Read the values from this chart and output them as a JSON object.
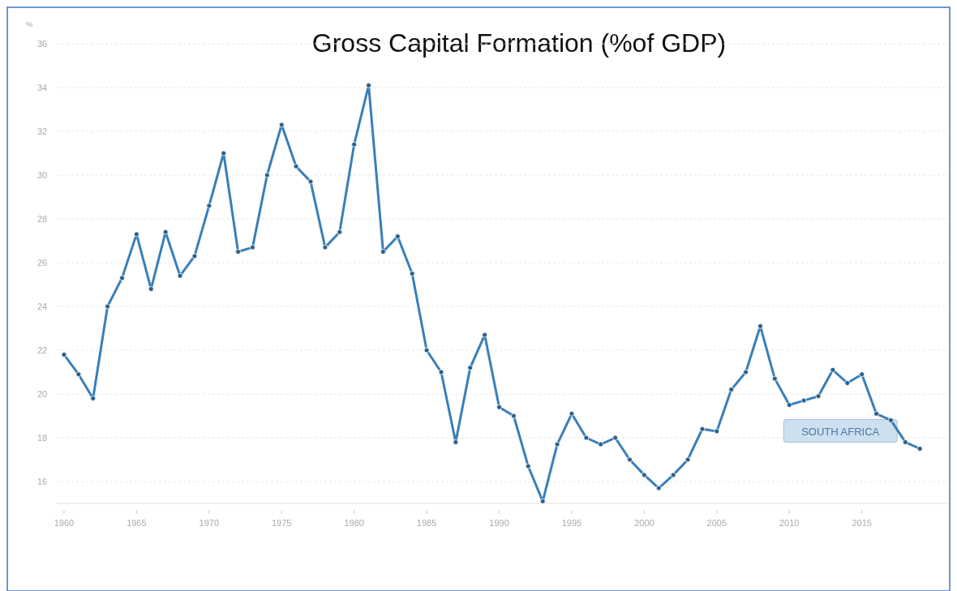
{
  "chart_data": {
    "type": "line",
    "title": "Gross Capital Formation (%of GDP)",
    "ylabel": "%",
    "x": [
      1960,
      1961,
      1962,
      1963,
      1964,
      1965,
      1966,
      1967,
      1968,
      1969,
      1970,
      1971,
      1972,
      1973,
      1974,
      1975,
      1976,
      1977,
      1978,
      1979,
      1980,
      1981,
      1982,
      1983,
      1984,
      1985,
      1986,
      1987,
      1988,
      1989,
      1990,
      1991,
      1992,
      1993,
      1994,
      1995,
      1996,
      1997,
      1998,
      1999,
      2000,
      2001,
      2002,
      2003,
      2004,
      2005,
      2006,
      2007,
      2008,
      2009,
      2010,
      2011,
      2012,
      2013,
      2014,
      2015,
      2016,
      2017,
      2018,
      2019
    ],
    "series": [
      {
        "name": "SOUTH AFRICA",
        "color": "#3a7fb8",
        "values": [
          21.8,
          20.9,
          19.8,
          24.0,
          25.3,
          27.3,
          24.8,
          27.4,
          25.4,
          26.3,
          28.6,
          31.0,
          26.5,
          26.7,
          30.0,
          32.3,
          30.4,
          29.7,
          26.7,
          27.4,
          31.4,
          34.1,
          26.5,
          27.2,
          25.5,
          22.0,
          21.0,
          17.8,
          21.2,
          22.7,
          19.4,
          19.0,
          16.7,
          15.1,
          17.7,
          19.1,
          18.0,
          17.7,
          18.0,
          17.0,
          16.3,
          15.7,
          16.3,
          17.0,
          18.4,
          18.3,
          20.2,
          21.0,
          23.1,
          20.7,
          19.5,
          19.7,
          19.9,
          21.1,
          20.5,
          20.9,
          19.1,
          18.8,
          17.8,
          17.5
        ]
      }
    ],
    "xlim": [
      1959.5,
      2021
    ],
    "xticks": [
      1960,
      1965,
      1970,
      1975,
      1980,
      1985,
      1990,
      1995,
      2000,
      2005,
      2010,
      2015
    ],
    "ylim": [
      15,
      36
    ],
    "yticks": [
      16,
      18,
      20,
      22,
      24,
      26,
      28,
      30,
      32,
      34,
      36
    ],
    "grid": "y",
    "marker": "circle",
    "line_style": "solid"
  }
}
